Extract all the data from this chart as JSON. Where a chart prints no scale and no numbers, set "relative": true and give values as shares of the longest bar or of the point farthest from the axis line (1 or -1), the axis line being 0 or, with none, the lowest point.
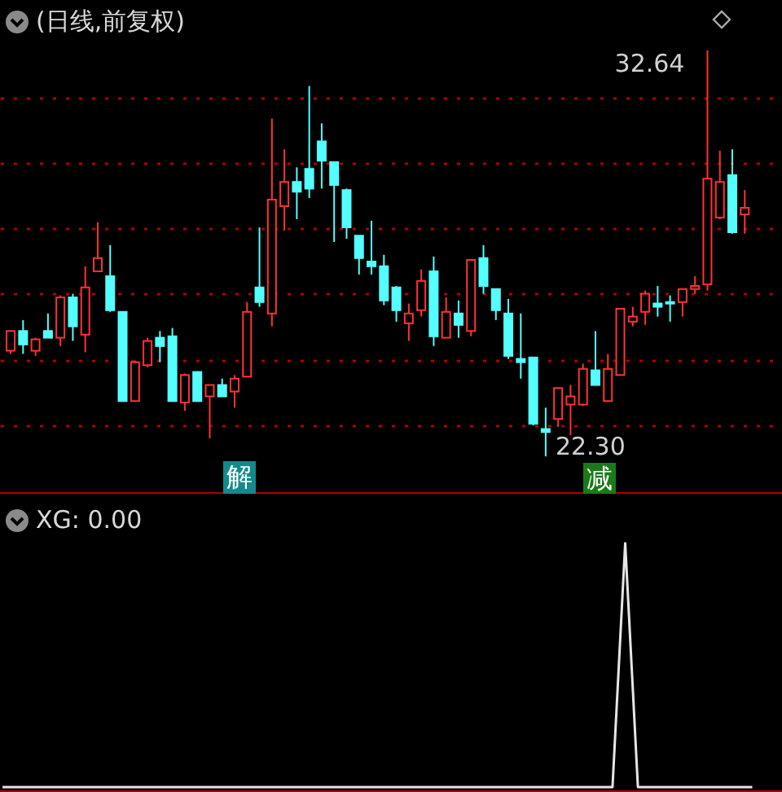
{
  "chart_data": [
    {
      "type": "candlestick",
      "title": "(日线,前复权)",
      "categories": [
        null,
        null,
        null,
        null,
        null,
        null,
        null,
        null,
        null,
        null,
        null,
        null,
        null,
        null,
        null,
        null,
        null,
        null,
        null,
        null,
        null,
        null,
        null,
        null,
        null,
        null,
        null,
        null,
        null,
        null,
        null,
        null,
        null,
        null,
        null,
        null,
        null,
        null,
        null,
        null,
        null,
        null,
        null,
        null,
        null,
        null,
        null,
        null,
        null,
        null,
        null,
        null,
        null,
        null,
        null,
        null,
        null,
        null,
        null,
        null
      ],
      "ohlc": [
        [
          24.99,
          25.49,
          24.91,
          25.49
        ],
        [
          25.49,
          25.77,
          24.91,
          25.15
        ],
        [
          24.99,
          25.32,
          24.86,
          25.28
        ],
        [
          25.49,
          25.94,
          25.32,
          25.32
        ],
        [
          25.32,
          26.4,
          25.11,
          26.35
        ],
        [
          26.35,
          26.44,
          25.24,
          25.61
        ],
        [
          25.4,
          27.14,
          24.95,
          26.6
        ],
        [
          27.01,
          28.26,
          27.01,
          27.35
        ],
        [
          26.89,
          27.68,
          25.98,
          26.02
        ],
        [
          25.98,
          25.98,
          23.71,
          23.71
        ],
        [
          23.71,
          24.74,
          23.71,
          24.7
        ],
        [
          24.62,
          25.32,
          24.57,
          25.24
        ],
        [
          25.32,
          25.49,
          24.7,
          25.11
        ],
        [
          25.36,
          25.57,
          23.71,
          23.71
        ],
        [
          23.67,
          24.41,
          23.46,
          24.37
        ],
        [
          24.45,
          24.45,
          23.71,
          23.71
        ],
        [
          23.83,
          24.12,
          22.76,
          24.12
        ],
        [
          24.12,
          24.28,
          23.83,
          23.83
        ],
        [
          23.95,
          24.37,
          23.54,
          24.28
        ],
        [
          24.33,
          26.23,
          24.33,
          25.98
        ],
        [
          26.6,
          28.13,
          26.11,
          26.23
        ],
        [
          25.94,
          30.9,
          25.61,
          28.84
        ],
        [
          28.67,
          30.12,
          28.05,
          29.29
        ],
        [
          29.29,
          29.66,
          28.34,
          29.04
        ],
        [
          29.62,
          31.73,
          28.88,
          29.12
        ],
        [
          30.32,
          30.78,
          29.12,
          29.83
        ],
        [
          29.79,
          29.79,
          27.76,
          29.21
        ],
        [
          29.08,
          29.12,
          27.84,
          28.13
        ],
        [
          27.92,
          27.92,
          26.93,
          27.35
        ],
        [
          27.26,
          28.3,
          26.93,
          27.14
        ],
        [
          27.14,
          27.43,
          26.15,
          26.27
        ],
        [
          26.6,
          26.64,
          25.73,
          26.02
        ],
        [
          25.69,
          26.19,
          25.24,
          25.94
        ],
        [
          26.02,
          27.06,
          25.86,
          26.77
        ],
        [
          27.01,
          27.39,
          25.11,
          25.36
        ],
        [
          25.32,
          26.35,
          25.32,
          25.98
        ],
        [
          25.94,
          26.27,
          25.32,
          25.65
        ],
        [
          25.49,
          27.3,
          25.36,
          27.3
        ],
        [
          27.35,
          27.68,
          26.44,
          26.64
        ],
        [
          26.56,
          26.56,
          25.77,
          26.02
        ],
        [
          25.94,
          26.31,
          24.78,
          24.86
        ],
        [
          24.78,
          25.94,
          24.28,
          24.7
        ],
        [
          24.82,
          24.82,
          23.09,
          23.13
        ],
        [
          23.0,
          23.54,
          22.3,
          22.92
        ],
        [
          23.25,
          24.04,
          23.05,
          24.04
        ],
        [
          23.62,
          24.12,
          22.84,
          23.83
        ],
        [
          23.62,
          24.66,
          23.58,
          24.53
        ],
        [
          24.49,
          25.49,
          24.12,
          24.12
        ],
        [
          23.71,
          24.91,
          23.71,
          24.53
        ],
        [
          24.37,
          26.06,
          24.37,
          26.06
        ],
        [
          25.73,
          26.11,
          25.61,
          25.86
        ],
        [
          25.98,
          26.52,
          25.65,
          26.44
        ],
        [
          26.19,
          26.64,
          25.86,
          26.11
        ],
        [
          26.23,
          26.4,
          25.73,
          26.19
        ],
        [
          26.23,
          26.56,
          25.86,
          26.56
        ],
        [
          26.56,
          26.89,
          26.44,
          26.64
        ],
        [
          26.68,
          32.64,
          26.52,
          29.37
        ],
        [
          28.38,
          30.08,
          28.34,
          29.29
        ],
        [
          29.46,
          30.12,
          27.97,
          28.01
        ],
        [
          28.46,
          29.08,
          27.97,
          28.63
        ]
      ],
      "colors": [
        "#ff3232",
        "#54ffff",
        "#ff3232",
        "#54ffff",
        "#ff3232",
        "#54ffff",
        "#ff3232",
        "#ff3232",
        "#54ffff",
        "#54ffff",
        "#ff3232",
        "#ff3232",
        "#54ffff",
        "#54ffff",
        "#ff3232",
        "#54ffff",
        "#ff3232",
        "#54ffff",
        "#ff3232",
        "#ff3232",
        "#54ffff",
        "#ff3232",
        "#ff3232",
        "#54ffff",
        "#54ffff",
        "#54ffff",
        "#54ffff",
        "#54ffff",
        "#54ffff",
        "#54ffff",
        "#54ffff",
        "#54ffff",
        "#ff3232",
        "#ff3232",
        "#54ffff",
        "#ff3232",
        "#54ffff",
        "#ff3232",
        "#54ffff",
        "#54ffff",
        "#54ffff",
        "#54ffff",
        "#54ffff",
        "#54ffff",
        "#ff3232",
        "#ff3232",
        "#ff3232",
        "#54ffff",
        "#ff3232",
        "#ff3232",
        "#ff3232",
        "#ff3232",
        "#54ffff",
        "#54ffff",
        "#ff3232",
        "#ff3232",
        "#ff3232",
        "#ff3232",
        "#54ffff",
        "#ff3232"
      ],
      "ylim": [
        21.39,
        33.92
      ],
      "yticks": [
        {
          "value": 31.44,
          "label": null
        },
        {
          "value": 29.79,
          "label": null
        },
        {
          "value": 28.13,
          "label": null
        },
        {
          "value": 26.44,
          "label": null
        },
        {
          "value": 24.74,
          "label": null
        },
        {
          "value": 23.09,
          "label": null
        }
      ],
      "grid": "y",
      "annotations": [
        "32.64",
        "22.30",
        "解",
        "减"
      ]
    },
    {
      "type": "line",
      "title": "XG: 0.00",
      "relative": true,
      "color": "#e6e6e6",
      "categories": [
        null,
        null,
        null,
        null,
        null,
        null,
        null,
        null,
        null,
        null,
        null,
        null,
        null,
        null,
        null,
        null,
        null,
        null,
        null,
        null,
        null,
        null,
        null,
        null,
        null,
        null,
        null,
        null,
        null,
        null,
        null,
        null,
        null,
        null,
        null,
        null,
        null,
        null,
        null,
        null,
        null,
        null,
        null,
        null,
        null,
        null,
        null,
        null,
        null,
        null,
        null,
        null,
        null,
        null,
        null,
        null,
        null,
        null,
        null,
        null
      ],
      "values": [
        0,
        0,
        0,
        0,
        0,
        0,
        0,
        0,
        0,
        0,
        0,
        0,
        0,
        0,
        0,
        0,
        0,
        0,
        0,
        0,
        0,
        0,
        0,
        0,
        0,
        0,
        0,
        0,
        0,
        0,
        0,
        0,
        0,
        0,
        0,
        0,
        0,
        0,
        0,
        0,
        0,
        0,
        0,
        0,
        0,
        0,
        0,
        0,
        0,
        1,
        0,
        0,
        0,
        0,
        0,
        0,
        0,
        0,
        0,
        0
      ]
    }
  ]
}
